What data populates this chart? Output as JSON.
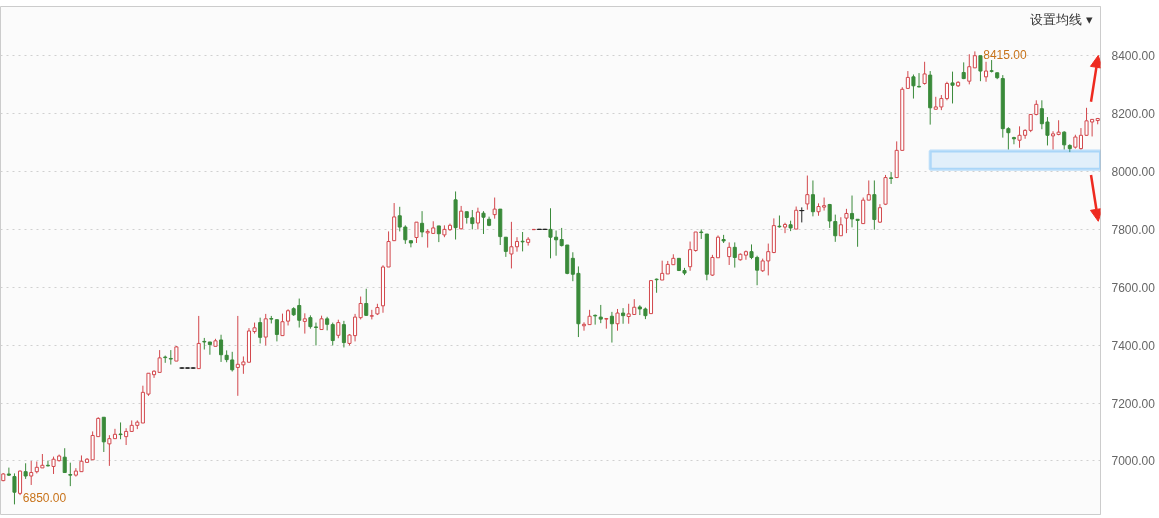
{
  "chart_data": {
    "type": "candlestick",
    "categories": [
      null,
      null,
      null,
      null,
      null,
      null,
      null,
      null,
      null,
      null,
      null,
      null,
      null,
      null,
      null,
      null,
      null,
      null,
      null,
      null,
      null,
      null,
      null,
      null,
      null,
      null,
      null,
      null,
      null,
      null,
      null,
      null,
      null,
      null,
      null,
      null,
      null,
      null,
      null,
      null,
      null,
      null,
      null,
      null,
      null,
      null,
      null,
      null,
      null,
      null,
      null,
      null,
      null,
      null,
      null,
      null,
      null,
      null,
      null,
      null,
      null,
      null,
      null,
      null,
      null,
      null,
      null,
      null,
      null,
      null,
      null,
      null,
      null,
      null,
      null,
      null,
      null,
      null,
      null,
      null,
      null,
      null,
      null,
      null,
      null,
      null,
      null,
      null,
      null,
      null,
      null,
      null,
      null,
      null,
      null,
      null,
      null,
      null,
      null,
      null,
      null,
      null,
      null,
      null,
      null,
      null,
      null,
      null,
      null,
      null,
      null,
      null,
      null,
      null,
      null,
      null,
      null,
      null,
      null,
      null,
      null,
      null,
      null,
      null,
      null,
      null,
      null,
      null,
      null,
      null,
      null,
      null,
      null,
      null,
      null,
      null,
      null,
      null,
      null,
      null,
      null,
      null,
      null,
      null,
      null,
      null,
      null,
      null,
      null,
      null,
      null,
      null,
      null,
      null,
      null,
      null,
      null,
      null,
      null,
      null,
      null,
      null,
      null,
      null,
      null,
      null,
      null,
      null,
      null,
      null,
      null,
      null,
      null,
      null,
      null,
      null,
      null,
      null,
      null,
      null,
      null,
      null,
      null,
      null,
      null,
      null,
      null,
      null,
      null,
      null,
      null,
      null,
      null,
      null,
      null,
      null,
      null
    ],
    "ohlc": [
      [
        6932,
        6958,
        6930,
        6955
      ],
      [
        6955,
        6977,
        6948,
        6951
      ],
      [
        6946,
        6957,
        6850,
        6892
      ],
      [
        6888,
        6967,
        6882,
        6965
      ],
      [
        6963,
        6992,
        6938,
        6948
      ],
      [
        6948,
        7000,
        6917,
        6960
      ],
      [
        6963,
        6998,
        6957,
        6978
      ],
      [
        6976,
        7024,
        6976,
        6985
      ],
      [
        6985,
        7001,
        6981,
        6983
      ],
      [
        6981,
        7015,
        6955,
        7006
      ],
      [
        7001,
        7022,
        6998,
        7017
      ],
      [
        7013,
        7044,
        6960,
        6960
      ],
      [
        6953,
        6994,
        6913,
        6951
      ],
      [
        6951,
        6975,
        6946,
        6965
      ],
      [
        6963,
        7019,
        6963,
        6999
      ],
      [
        6995,
        7010,
        6993,
        7006
      ],
      [
        7004,
        7102,
        7004,
        7088
      ],
      [
        7084,
        7151,
        7084,
        7147
      ],
      [
        7151,
        7151,
        7031,
        7066
      ],
      [
        7059,
        7089,
        6983,
        7077
      ],
      [
        7077,
        7111,
        7077,
        7092
      ],
      [
        7093,
        7133,
        7075,
        7091
      ],
      [
        7084,
        7113,
        7055,
        7102
      ],
      [
        7102,
        7140,
        7100,
        7123
      ],
      [
        7123,
        7140,
        7110,
        7134
      ],
      [
        7131,
        7260,
        7131,
        7237
      ],
      [
        7231,
        7303,
        7225,
        7303
      ],
      [
        7298,
        7313,
        7287,
        7310
      ],
      [
        7306,
        7383,
        7306,
        7356
      ],
      [
        7359,
        7364,
        7339,
        7357
      ],
      [
        7354,
        7383,
        7333,
        7352
      ],
      [
        7345,
        7397,
        7345,
        7394
      ],
      [
        7321,
        7321,
        7321,
        7321
      ],
      [
        7321,
        7321,
        7321,
        7321
      ],
      [
        7321,
        7321,
        7321,
        7321
      ],
      [
        7319,
        7501,
        7319,
        7406
      ],
      [
        7413,
        7425,
        7385,
        7411
      ],
      [
        7411,
        7411,
        7367,
        7402
      ],
      [
        7396,
        7422,
        7396,
        7415
      ],
      [
        7418,
        7436,
        7342,
        7367
      ],
      [
        7365,
        7382,
        7341,
        7350
      ],
      [
        7349,
        7377,
        7309,
        7315
      ],
      [
        7323,
        7501,
        7225,
        7334
      ],
      [
        7332,
        7361,
        7301,
        7342
      ],
      [
        7341,
        7459,
        7341,
        7449
      ],
      [
        7447,
        7478,
        7440,
        7460
      ],
      [
        7478,
        7495,
        7406,
        7427
      ],
      [
        7428,
        7508,
        7399,
        7491
      ],
      [
        7492,
        7501,
        7475,
        7490
      ],
      [
        7488,
        7488,
        7413,
        7437
      ],
      [
        7433,
        7509,
        7433,
        7481
      ],
      [
        7483,
        7524,
        7468,
        7519
      ],
      [
        7526,
        7531,
        7501,
        7505
      ],
      [
        7537,
        7561,
        7461,
        7486
      ],
      [
        7482,
        7510,
        7440,
        7491
      ],
      [
        7495,
        7503,
        7457,
        7464
      ],
      [
        7463,
        7478,
        7399,
        7461
      ],
      [
        7454,
        7502,
        7454,
        7491
      ],
      [
        7491,
        7498,
        7451,
        7472
      ],
      [
        7471,
        7478,
        7399,
        7416
      ],
      [
        7434,
        7488,
        7424,
        7478
      ],
      [
        7471,
        7484,
        7392,
        7409
      ],
      [
        7406,
        7438,
        7399,
        7435
      ],
      [
        7433,
        7508,
        7413,
        7497
      ],
      [
        7495,
        7568,
        7489,
        7544
      ],
      [
        7544,
        7595,
        7501,
        7503
      ],
      [
        7500,
        7522,
        7489,
        7502
      ],
      [
        7508,
        7543,
        7504,
        7530
      ],
      [
        7536,
        7676,
        7512,
        7670
      ],
      [
        7670,
        7793,
        7670,
        7758
      ],
      [
        7761,
        7891,
        7761,
        7843
      ],
      [
        7847,
        7878,
        7793,
        7808
      ],
      [
        7808,
        7814,
        7750,
        7764
      ],
      [
        7761,
        7761,
        7738,
        7753
      ],
      [
        7772,
        7825,
        7753,
        7825
      ],
      [
        7821,
        7863,
        7773,
        7791
      ],
      [
        7788,
        7800,
        7737,
        7793
      ],
      [
        7786,
        7828,
        7786,
        7805
      ],
      [
        7812,
        7812,
        7756,
        7785
      ],
      [
        7781,
        7814,
        7773,
        7800
      ],
      [
        7799,
        7820,
        7795,
        7814
      ],
      [
        7902,
        7931,
        7765,
        7806
      ],
      [
        7802,
        7881,
        7800,
        7863
      ],
      [
        7861,
        7861,
        7820,
        7841
      ],
      [
        7840,
        7867,
        7800,
        7820
      ],
      [
        7822,
        7875,
        7800,
        7860
      ],
      [
        7856,
        7863,
        7784,
        7842
      ],
      [
        7835,
        7844,
        7811,
        7814
      ],
      [
        7851,
        7910,
        7837,
        7870
      ],
      [
        7870,
        7870,
        7746,
        7775
      ],
      [
        7773,
        7773,
        7705,
        7724
      ],
      [
        7715,
        7826,
        7665,
        7740
      ],
      [
        7740,
        7773,
        7723,
        7758
      ],
      [
        7759,
        7791,
        7724,
        7757
      ],
      [
        7755,
        7773,
        7744,
        7766
      ],
      [
        7799,
        7800,
        7799,
        7800
      ],
      [
        7800,
        7800,
        7800,
        7800
      ],
      [
        7800,
        7800,
        7800,
        7800
      ],
      [
        7800,
        7873,
        7700,
        7773
      ],
      [
        7773,
        7796,
        7709,
        7764
      ],
      [
        7765,
        7805,
        7741,
        7744
      ],
      [
        7746,
        7746,
        7645,
        7648
      ],
      [
        7700,
        7721,
        7621,
        7645
      ],
      [
        7648,
        7672,
        7428,
        7474
      ],
      [
        7467,
        7479,
        7450,
        7472
      ],
      [
        7471,
        7522,
        7471,
        7500
      ],
      [
        7503,
        7506,
        7471,
        7501
      ],
      [
        7497,
        7539,
        7476,
        7490
      ],
      [
        7490,
        7494,
        7457,
        7492
      ],
      [
        7500,
        7515,
        7409,
        7474
      ],
      [
        7474,
        7525,
        7450,
        7511
      ],
      [
        7511,
        7528,
        7474,
        7502
      ],
      [
        7499,
        7543,
        7474,
        7508
      ],
      [
        7506,
        7559,
        7506,
        7531
      ],
      [
        7532,
        7538,
        7504,
        7525
      ],
      [
        7525,
        7530,
        7490,
        7502
      ],
      [
        7509,
        7625,
        7509,
        7623
      ],
      [
        7628,
        7630,
        7581,
        7626
      ],
      [
        7625,
        7692,
        7625,
        7648
      ],
      [
        7646,
        7691,
        7646,
        7679
      ],
      [
        7678,
        7714,
        7678,
        7700
      ],
      [
        7700,
        7700,
        7656,
        7658
      ],
      [
        7658,
        7667,
        7642,
        7649
      ],
      [
        7671,
        7758,
        7657,
        7730
      ],
      [
        7727,
        7791,
        7723,
        7791
      ],
      [
        7791,
        7800,
        7767,
        7789
      ],
      [
        7784,
        7784,
        7624,
        7645
      ],
      [
        7642,
        7712,
        7639,
        7703
      ],
      [
        7702,
        7779,
        7702,
        7773
      ],
      [
        7765,
        7781,
        7753,
        7760
      ],
      [
        7706,
        7755,
        7677,
        7738
      ],
      [
        7738,
        7755,
        7668,
        7703
      ],
      [
        7695,
        7717,
        7692,
        7714
      ],
      [
        7711,
        7727,
        7695,
        7723
      ],
      [
        7723,
        7748,
        7697,
        7703
      ],
      [
        7703,
        7709,
        7607,
        7659
      ],
      [
        7657,
        7699,
        7653,
        7691
      ],
      [
        7691,
        7751,
        7641,
        7723
      ],
      [
        7720,
        7838,
        7718,
        7813
      ],
      [
        7811,
        7848,
        7806,
        7809
      ],
      [
        7808,
        7823,
        7787,
        7817
      ],
      [
        7816,
        7830,
        7794,
        7805
      ],
      [
        7801,
        7879,
        7801,
        7866
      ],
      [
        7865,
        7876,
        7824,
        7865
      ],
      [
        7888,
        7986,
        7868,
        7920
      ],
      [
        7920,
        7969,
        7845,
        7861
      ],
      [
        7861,
        7890,
        7847,
        7879
      ],
      [
        7877,
        7910,
        7865,
        7882
      ],
      [
        7886,
        7888,
        7805,
        7829
      ],
      [
        7827,
        7851,
        7757,
        7778
      ],
      [
        7778,
        7842,
        7778,
        7816
      ],
      [
        7839,
        7871,
        7787,
        7855
      ],
      [
        7855,
        7917,
        7807,
        7836
      ],
      [
        7835,
        7835,
        7740,
        7831
      ],
      [
        7820,
        7910,
        7820,
        7901
      ],
      [
        7901,
        7969,
        7901,
        7920
      ],
      [
        7920,
        7969,
        7799,
        7834
      ],
      [
        7825,
        7887,
        7822,
        7875
      ],
      [
        7887,
        7988,
        7884,
        7979
      ],
      [
        7978,
        7998,
        7957,
        7976
      ],
      [
        7979,
        8104,
        7979,
        8073
      ],
      [
        8073,
        8291,
        8073,
        8284
      ],
      [
        8287,
        8347,
        8287,
        8325
      ],
      [
        8327,
        8335,
        8252,
        8296
      ],
      [
        8294,
        8340,
        8291,
        8292
      ],
      [
        8304,
        8379,
        8300,
        8337
      ],
      [
        8333,
        8347,
        8162,
        8220
      ],
      [
        8215,
        8258,
        8215,
        8223
      ],
      [
        8223,
        8264,
        8212,
        8252
      ],
      [
        8252,
        8310,
        8246,
        8304
      ],
      [
        8306,
        8345,
        8235,
        8298
      ],
      [
        8296,
        8312,
        8292,
        8308
      ],
      [
        8342,
        8377,
        8319,
        8321
      ],
      [
        8312,
        8405,
        8301,
        8362
      ],
      [
        8358,
        8415,
        8358,
        8400
      ],
      [
        8400,
        8400,
        8312,
        8347
      ],
      [
        8327,
        8379,
        8310,
        8347
      ],
      [
        8348,
        8385,
        8342,
        8346
      ],
      [
        8341,
        8342,
        8319,
        8324
      ],
      [
        8321,
        8333,
        8117,
        8148
      ],
      [
        8148,
        8153,
        8076,
        8134
      ],
      [
        8117,
        8120,
        8094,
        8113
      ],
      [
        8108,
        8156,
        8082,
        8125
      ],
      [
        8125,
        8146,
        8113,
        8142
      ],
      [
        8142,
        8197,
        8136,
        8197
      ],
      [
        8197,
        8246,
        8194,
        8232
      ],
      [
        8217,
        8246,
        8146,
        8165
      ],
      [
        8171,
        8188,
        8090,
        8125
      ],
      [
        8123,
        8139,
        8076,
        8130
      ],
      [
        8128,
        8177,
        8125,
        8136
      ],
      [
        8136,
        8139,
        8076,
        8092
      ],
      [
        8090,
        8094,
        8067,
        8079
      ],
      [
        8084,
        8127,
        8079,
        8119
      ],
      [
        8079,
        8150,
        8076,
        8125
      ],
      [
        8125,
        8220,
        8123,
        8175
      ],
      [
        8171,
        8180,
        8121,
        8180
      ],
      [
        8176,
        8185,
        8163,
        8183
      ]
    ],
    "ylim": [
      6815,
      8570
    ],
    "yticks": [
      {
        "value": 7000,
        "label": "7000.00"
      },
      {
        "value": 7200,
        "label": "7200.00"
      },
      {
        "value": 7400,
        "label": "7400.00"
      },
      {
        "value": 7600,
        "label": "7600.00"
      },
      {
        "value": 7800,
        "label": "7800.00"
      },
      {
        "value": 8000,
        "label": "8000.00"
      },
      {
        "value": 8200,
        "label": "8200.00"
      },
      {
        "value": 8400,
        "label": "8400.00"
      }
    ],
    "grid": "y",
    "tick_labels": "y",
    "bands": [
      {
        "axis": "y",
        "from": 8008,
        "to": 8071,
        "color": "#2a9df4"
      }
    ],
    "annotations": [
      "8415.00",
      "6850.00",
      "设置均线 ▾"
    ]
  }
}
